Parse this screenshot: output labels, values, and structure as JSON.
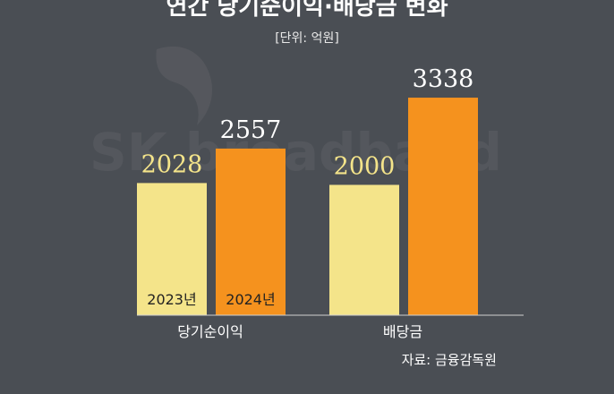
{
  "chart_data": {
    "type": "bar",
    "title": "연간 당기순이익·배당금 변화",
    "unit": "[단위: 억원]",
    "categories": [
      "당기순이익",
      "배당금"
    ],
    "series": [
      {
        "name": "2023년",
        "values": [
          2028,
          2000
        ],
        "color": "#f4e48a"
      },
      {
        "name": "2024년",
        "values": [
          2557,
          3338
        ],
        "color": "#f5921e"
      }
    ],
    "ylim": [
      0,
      3600
    ],
    "grid": false,
    "legend": "none"
  },
  "source": "자료: 금융감독원",
  "watermark": "SK broadband",
  "colors": {
    "background": "#4a4e54",
    "value_label_2023": "#f4e48a",
    "value_label_2024": "#ffffff"
  }
}
